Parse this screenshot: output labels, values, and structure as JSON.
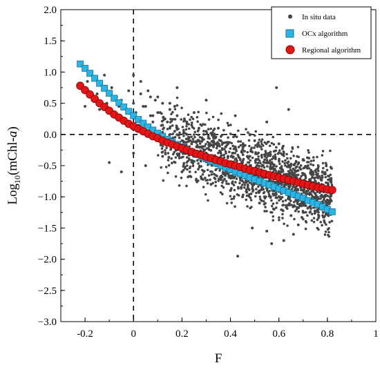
{
  "chart_data": {
    "type": "scatter",
    "xlabel": "F",
    "ylabel_main": "Log",
    "ylabel_sub": "10",
    "ylabel_paren": "(mChl-",
    "ylabel_italic": "a",
    "ylabel_close": ")",
    "xlim": [
      -0.3,
      1.0
    ],
    "ylim": [
      -3.0,
      2.0
    ],
    "x_ticks": [
      -0.2,
      0,
      0.2,
      0.4,
      0.6,
      0.8,
      1
    ],
    "x_tick_labels": [
      "-0.2",
      "0",
      "0.2",
      "0.4",
      "0.6",
      "0.8",
      "1"
    ],
    "y_ticks": [
      2.0,
      1.5,
      1.0,
      0.5,
      0.0,
      -0.5,
      -1.0,
      -1.5,
      -2.0,
      -2.5,
      -3.0
    ],
    "y_tick_labels": [
      "2.0",
      "1.5",
      "1.0",
      "0.5",
      "0.0",
      "−0.5",
      "−1.0",
      "−1.5",
      "−2.0",
      "−2.5",
      "−3.0"
    ],
    "reference_lines": {
      "x": 0,
      "y": 0,
      "style": "dashed"
    },
    "legend_position": "top-right",
    "grid": false,
    "series": [
      {
        "name": "In situ data",
        "marker": "dot",
        "color": "#454545",
        "x": [
          -0.22,
          -0.2,
          -0.19,
          -0.17,
          -0.16,
          -0.15,
          -0.14,
          -0.12,
          -0.11,
          -0.1,
          -0.09,
          -0.08,
          -0.07,
          -0.06,
          -0.05,
          -0.04,
          -0.03,
          -0.02,
          -0.01,
          0.0,
          0.01,
          0.02,
          0.03,
          0.04,
          0.05,
          0.06,
          0.07,
          0.08,
          0.09,
          0.1,
          0.11,
          0.12,
          0.13,
          0.14,
          0.15,
          0.16,
          0.17,
          0.18,
          0.19,
          0.2,
          0.21,
          0.22,
          0.23,
          0.24,
          0.25,
          0.26,
          0.27,
          0.28,
          0.29,
          0.3,
          0.31,
          0.32,
          0.33,
          0.34,
          0.35,
          0.36,
          0.37,
          0.38,
          0.39,
          0.4,
          0.41,
          0.42,
          0.43,
          0.44,
          0.45,
          0.46,
          0.47,
          0.48,
          0.49,
          0.5,
          0.51,
          0.52,
          0.53,
          0.54,
          0.55,
          0.56,
          0.57,
          0.58,
          0.59,
          0.6,
          0.61,
          0.62,
          0.63,
          0.64,
          0.65,
          0.66,
          0.67,
          0.68,
          0.69,
          0.7,
          0.71,
          0.72,
          0.73,
          0.74,
          0.75,
          0.76,
          0.77,
          0.78,
          0.79,
          0.8,
          -0.1,
          -0.05,
          0.0,
          0.02,
          0.05,
          0.08,
          0.1,
          0.12,
          0.15,
          0.18,
          0.2,
          0.22,
          0.25,
          0.28,
          0.3,
          0.32,
          0.35,
          0.38,
          0.4,
          0.42,
          0.45,
          0.48,
          0.5,
          0.52,
          0.55,
          0.58,
          0.6,
          0.62,
          0.65,
          0.68,
          0.7,
          0.72,
          0.75,
          0.78,
          0.8,
          0.0,
          0.03,
          0.06,
          0.09,
          0.12,
          0.15,
          0.18,
          0.21,
          0.24,
          0.27,
          0.3,
          0.33,
          0.36,
          0.39,
          0.42,
          0.45,
          0.48,
          0.51,
          0.54,
          0.57,
          0.6,
          0.63,
          0.66,
          0.69,
          0.72,
          0.75,
          0.04,
          0.07,
          0.11,
          0.14,
          0.17,
          0.23,
          0.26,
          0.29,
          0.31,
          0.34,
          0.37,
          0.41,
          0.44,
          0.47,
          0.53,
          0.56,
          0.59,
          0.61,
          0.64,
          0.67,
          0.71,
          0.74,
          0.77,
          0.43,
          0.57,
          0.62,
          0.55,
          0.59,
          0.64,
          0.49,
          0.66,
          0.7
        ],
        "y": [
          0.75,
          0.45,
          0.85,
          0.55,
          0.9,
          0.65,
          0.4,
          0.95,
          0.5,
          0.35,
          0.75,
          0.3,
          0.6,
          0.45,
          0.55,
          0.2,
          0.4,
          0.7,
          0.15,
          0.5,
          0.35,
          0.25,
          0.65,
          0.1,
          0.45,
          0.0,
          0.3,
          0.2,
          0.05,
          0.35,
          -0.1,
          0.15,
          0.25,
          -0.05,
          0.1,
          -0.15,
          0.05,
          -0.2,
          0.0,
          -0.1,
          -0.25,
          0.0,
          -0.3,
          -0.15,
          -0.35,
          -0.2,
          -0.1,
          -0.4,
          -0.25,
          -0.3,
          -0.45,
          -0.35,
          -0.2,
          -0.5,
          -0.4,
          -0.3,
          -0.55,
          -0.45,
          -0.35,
          -0.6,
          -0.5,
          -0.4,
          -0.65,
          -0.55,
          -0.45,
          -0.7,
          -0.6,
          -0.5,
          -0.75,
          -0.65,
          -0.55,
          -0.8,
          -0.7,
          -0.6,
          -0.85,
          -0.75,
          -0.65,
          -0.9,
          -0.8,
          -0.7,
          -0.95,
          -0.85,
          -0.75,
          -1.0,
          -0.9,
          -0.8,
          -1.05,
          -0.95,
          -0.85,
          -1.1,
          -1.0,
          -0.9,
          -1.15,
          -1.05,
          -0.95,
          -1.2,
          -1.1,
          -1.0,
          -1.15,
          -1.05,
          -0.45,
          -0.6,
          -0.3,
          0.15,
          -0.5,
          0.3,
          0.6,
          -0.35,
          0.5,
          0.75,
          -0.6,
          0.2,
          0.35,
          -0.7,
          0.55,
          -0.8,
          0.1,
          -0.2,
          -0.9,
          0.3,
          -1.0,
          0.0,
          -0.1,
          -1.1,
          0.2,
          -1.2,
          -0.15,
          -0.3,
          -1.3,
          -1.45,
          -0.4,
          -0.5,
          -1.25,
          -0.6,
          -1.15,
          0.95,
          0.85,
          0.7,
          0.55,
          0.5,
          0.4,
          0.3,
          0.25,
          0.15,
          0.1,
          0.05,
          -0.05,
          -0.1,
          -0.15,
          -0.2,
          -0.25,
          -0.35,
          -0.4,
          -0.45,
          -0.55,
          -0.6,
          -0.7,
          -0.75,
          -0.85,
          -0.95,
          -1.0,
          0.45,
          0.6,
          0.35,
          0.2,
          0.45,
          -0.05,
          -0.3,
          0.0,
          -0.4,
          -0.15,
          -0.55,
          -0.3,
          -0.7,
          -0.35,
          -0.75,
          -0.45,
          -0.85,
          -0.55,
          -0.95,
          -0.65,
          -0.75,
          -1.05,
          -0.9,
          -1.95,
          -1.75,
          -1.7,
          -1.55,
          0.75,
          0.4,
          -1.5,
          -1.6,
          -1.25
        ]
      },
      {
        "name": "OCx algorithm",
        "marker": "square",
        "color": "#29b6e6",
        "x": [
          -0.22,
          -0.2,
          -0.18,
          -0.16,
          -0.14,
          -0.12,
          -0.1,
          -0.08,
          -0.06,
          -0.04,
          -0.02,
          0.0,
          0.02,
          0.04,
          0.06,
          0.08,
          0.1,
          0.12,
          0.14,
          0.16,
          0.18,
          0.2,
          0.22,
          0.24,
          0.26,
          0.28,
          0.3,
          0.32,
          0.34,
          0.36,
          0.38,
          0.4,
          0.42,
          0.44,
          0.46,
          0.48,
          0.5,
          0.52,
          0.54,
          0.56,
          0.58,
          0.6,
          0.62,
          0.64,
          0.66,
          0.68,
          0.7,
          0.72,
          0.74,
          0.76,
          0.78,
          0.8,
          0.82
        ],
        "y": [
          1.13,
          1.06,
          0.98,
          0.9,
          0.82,
          0.74,
          0.66,
          0.58,
          0.51,
          0.44,
          0.37,
          0.3,
          0.24,
          0.18,
          0.12,
          0.07,
          0.02,
          -0.03,
          -0.08,
          -0.12,
          -0.16,
          -0.2,
          -0.24,
          -0.28,
          -0.32,
          -0.36,
          -0.39,
          -0.43,
          -0.46,
          -0.5,
          -0.53,
          -0.56,
          -0.6,
          -0.63,
          -0.66,
          -0.69,
          -0.72,
          -0.75,
          -0.78,
          -0.81,
          -0.84,
          -0.87,
          -0.9,
          -0.93,
          -0.96,
          -0.99,
          -1.02,
          -1.06,
          -1.09,
          -1.12,
          -1.16,
          -1.2,
          -1.24
        ]
      },
      {
        "name": "Regional algorithm",
        "marker": "circle",
        "color": "#e61414",
        "x": [
          -0.22,
          -0.2,
          -0.18,
          -0.16,
          -0.14,
          -0.12,
          -0.1,
          -0.08,
          -0.06,
          -0.04,
          -0.02,
          0.0,
          0.02,
          0.04,
          0.06,
          0.08,
          0.1,
          0.12,
          0.14,
          0.16,
          0.18,
          0.2,
          0.22,
          0.24,
          0.26,
          0.28,
          0.3,
          0.32,
          0.34,
          0.36,
          0.38,
          0.4,
          0.42,
          0.44,
          0.46,
          0.48,
          0.5,
          0.52,
          0.54,
          0.56,
          0.58,
          0.6,
          0.62,
          0.64,
          0.66,
          0.68,
          0.7,
          0.72,
          0.74,
          0.76,
          0.78,
          0.8,
          0.82
        ],
        "y": [
          0.78,
          0.71,
          0.64,
          0.57,
          0.5,
          0.44,
          0.38,
          0.32,
          0.27,
          0.22,
          0.17,
          0.13,
          0.09,
          0.05,
          0.01,
          -0.03,
          -0.06,
          -0.1,
          -0.13,
          -0.16,
          -0.19,
          -0.22,
          -0.25,
          -0.28,
          -0.31,
          -0.33,
          -0.36,
          -0.38,
          -0.41,
          -0.43,
          -0.46,
          -0.48,
          -0.5,
          -0.52,
          -0.55,
          -0.57,
          -0.59,
          -0.61,
          -0.63,
          -0.65,
          -0.67,
          -0.69,
          -0.71,
          -0.73,
          -0.75,
          -0.77,
          -0.79,
          -0.81,
          -0.83,
          -0.85,
          -0.86,
          -0.88,
          -0.89
        ]
      }
    ]
  }
}
